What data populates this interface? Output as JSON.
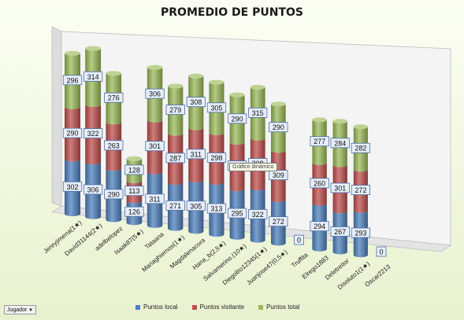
{
  "chart_data": {
    "type": "bar",
    "stacked": true,
    "three_d": true,
    "title": "PROMEDIO DE PUNTOS",
    "categories": [
      "Jereyjimena(1★)",
      "David31144(2★)",
      "adelbelopez",
      "Isaak87(5★)",
      "Tataana",
      "Mariaghiernos(1★)",
      "Magdalenacora",
      "Hana_b(2,5★)",
      "Salvamerino.(10★)",
      "Diegolito12345(1★)",
      "Juanjose47(0,5★)",
      "Truffita",
      "Elrego1883",
      "Deletreitor",
      "Disoluto1(1★)",
      "Oscar2213"
    ],
    "series": [
      {
        "name": "Puntos local",
        "color": "#4f81bd",
        "values": [
          302,
          306,
          290,
          126,
          311,
          271,
          305,
          313,
          295,
          322,
          272,
          0,
          294,
          267,
          293,
          0
        ]
      },
      {
        "name": "Puntos visitante",
        "color": "#c0504d",
        "values": [
          290,
          322,
          263,
          113,
          301,
          287,
          311,
          298,
          284,
          308,
          309,
          0,
          260,
          301,
          272,
          0
        ]
      },
      {
        "name": "Puntos total",
        "color": "#9bbb59",
        "values": [
          296,
          314,
          276,
          128,
          306,
          279,
          308,
          305,
          290,
          315,
          290,
          0,
          277,
          284,
          282,
          0
        ]
      }
    ],
    "legend_position": "bottom",
    "grid": false
  },
  "ui": {
    "field_button_label": "Jugador",
    "field_button_arrow": "▼",
    "tooltip_text": "Gráfico dinámico"
  }
}
